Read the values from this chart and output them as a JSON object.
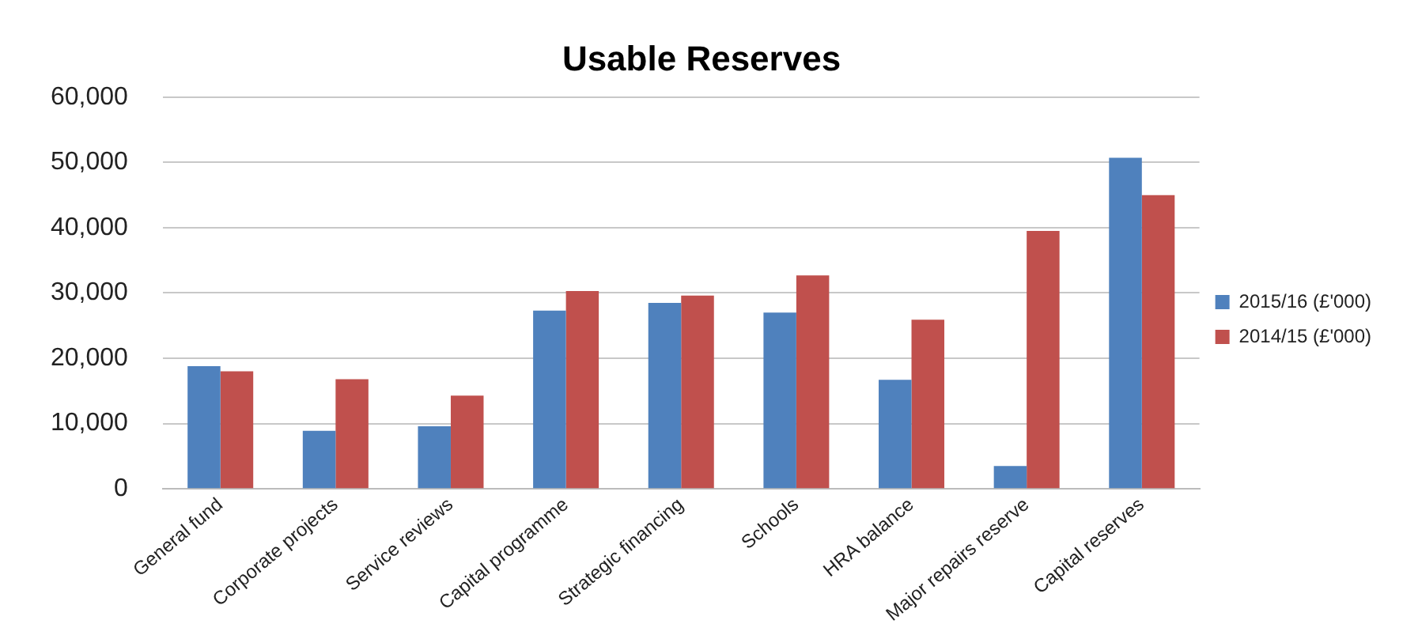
{
  "chart_data": {
    "type": "bar",
    "title": "Usable Reserves",
    "categories": [
      "General fund",
      "Corporate projects",
      "Service reviews",
      "Capital programme",
      "Strategic financing",
      "Schools",
      "HRA balance",
      "Major repairs reserve",
      "Capital reserves"
    ],
    "series": [
      {
        "name": "2015/16 (£'000)",
        "color": "#4f81bd",
        "values": [
          18800,
          8900,
          9600,
          27300,
          28500,
          27000,
          16700,
          3500,
          50700
        ]
      },
      {
        "name": "2014/15 (£'000)",
        "color": "#c0504d",
        "values": [
          18000,
          16800,
          14300,
          30300,
          29600,
          32700,
          25900,
          39500,
          45000
        ]
      }
    ],
    "ylim": [
      0,
      60000
    ],
    "yticks": [
      {
        "value": 0,
        "label": "0"
      },
      {
        "value": 10000,
        "label": "10,000"
      },
      {
        "value": 20000,
        "label": "20,000"
      },
      {
        "value": 30000,
        "label": "30,000"
      },
      {
        "value": 40000,
        "label": "40,000"
      },
      {
        "value": 50000,
        "label": "50,000"
      },
      {
        "value": 60000,
        "label": "60,000"
      }
    ],
    "grid": "y",
    "legend": "right"
  }
}
